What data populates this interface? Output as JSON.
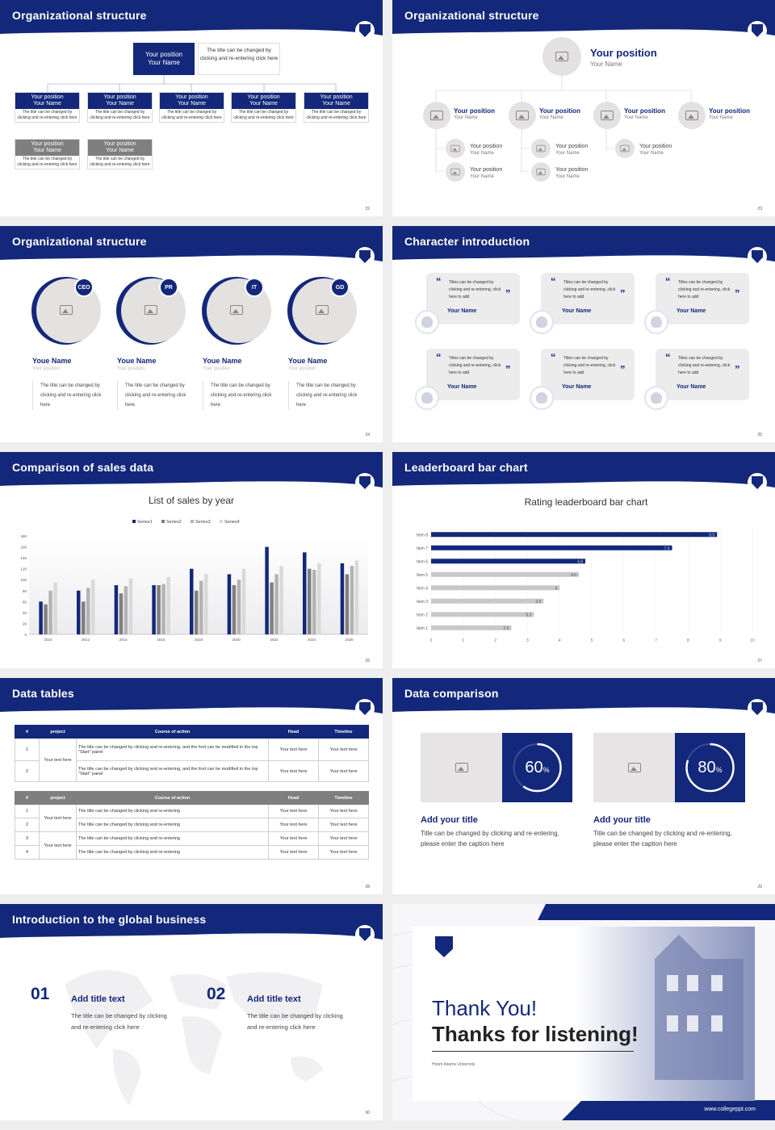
{
  "s22": {
    "title": "Organizational structure",
    "top": {
      "pos": "Your position",
      "name": "Your Name",
      "note": "The title can be changed by clicking and re-entering click here"
    },
    "row1": [
      {
        "pos": "Your position",
        "name": "Your Name",
        "desc": "The title can be changed by clicking and re-entering click here"
      },
      {
        "pos": "Your position",
        "name": "Your Name",
        "desc": "The title can be changed by clicking and re-entering click here"
      },
      {
        "pos": "Your position",
        "name": "Your Name",
        "desc": "The title can be changed by clicking and re-entering click here"
      },
      {
        "pos": "Your position",
        "name": "Your Name",
        "desc": "The title can be changed by clicking and re-entering click here"
      },
      {
        "pos": "Your position",
        "name": "Your Name",
        "desc": "The title can be changed by clicking and re-entering click here"
      }
    ],
    "row2": [
      {
        "pos": "Your position",
        "name": "Your Name",
        "desc": "The title can be changed by clicking and re-entering click here"
      },
      {
        "pos": "Your position",
        "name": "Your Name",
        "desc": "The title can be changed by clicking and re-entering click here"
      }
    ],
    "page": "22"
  },
  "s23": {
    "title": "Organizational structure",
    "top": {
      "pos": "Your position",
      "name": "Your Name"
    },
    "mid": [
      {
        "pos": "Your position",
        "name": "Your Name"
      },
      {
        "pos": "Your position",
        "name": "Your Name"
      },
      {
        "pos": "Your position",
        "name": "Your Name"
      },
      {
        "pos": "Your position",
        "name": "Your Name"
      }
    ],
    "sub": [
      {
        "pos": "Your position",
        "name": "Your Name"
      },
      {
        "pos": "Your position",
        "name": "Your Name"
      },
      {
        "pos": "Your position",
        "name": "Your Name"
      },
      {
        "pos": "Your position",
        "name": "Your Name"
      },
      {
        "pos": "Your position",
        "name": "Your Name"
      }
    ],
    "page": "23"
  },
  "s24": {
    "title": "Organizational structure",
    "people": [
      {
        "tag": "CEO",
        "name": "Youe Name",
        "pos": "Your position",
        "desc": "The title can be changed by clicking and re-entering click here"
      },
      {
        "tag": "PR",
        "name": "Youe Name",
        "pos": "Your position",
        "desc": "The title can be changed by clicking and re-entering click here"
      },
      {
        "tag": "IT",
        "name": "Youe Name",
        "pos": "Your position",
        "desc": "The title can be changed by clicking and re-entering click here"
      },
      {
        "tag": "GD",
        "name": "Youe Name",
        "pos": "Your position",
        "desc": "The title can be changed by clicking and re-entering click here"
      }
    ],
    "page": "24"
  },
  "s25": {
    "title": "Character introduction",
    "cards": [
      {
        "text": "Titles can be changed by clicking and re-entering, click here to add",
        "name": "Your Name"
      },
      {
        "text": "Titles can be changed by clicking and re-entering, click here to add",
        "name": "Your Name"
      },
      {
        "text": "Titles can be changed by clicking and re-entering, click here to add",
        "name": "Your Name"
      },
      {
        "text": "Titles can be changed by clicking and re-entering, click here to add",
        "name": "Your Name"
      },
      {
        "text": "Titles can be changed by clicking and re-entering, click here to add",
        "name": "Your Name"
      },
      {
        "text": "Titles can be changed by clicking and re-entering, click here to add",
        "name": "Your Name"
      }
    ],
    "page": "25"
  },
  "s26": {
    "title": "Comparison of sales data",
    "page": "26"
  },
  "s27": {
    "title": "Leaderboard bar chart",
    "page": "27"
  },
  "chart_data": [
    {
      "type": "bar",
      "title": "List of sales by year",
      "categories": [
        "2010",
        "2012",
        "2014",
        "2016",
        "2018",
        "2020",
        "2022",
        "2024",
        "2026"
      ],
      "series": [
        {
          "name": "Series1",
          "color": "#13287a",
          "values": [
            60,
            80,
            90,
            90,
            120,
            110,
            160,
            150,
            130
          ]
        },
        {
          "name": "Series2",
          "color": "#808080",
          "values": [
            55,
            60,
            75,
            90,
            80,
            90,
            95,
            120,
            110
          ]
        },
        {
          "name": "Series3",
          "color": "#b3b3b3",
          "values": [
            80,
            85,
            88,
            92,
            98,
            100,
            110,
            118,
            125
          ]
        },
        {
          "name": "Series4",
          "color": "#d9d9d9",
          "values": [
            95,
            100,
            102,
            105,
            110,
            120,
            125,
            130,
            135
          ]
        }
      ],
      "yticks": [
        0,
        20,
        40,
        60,
        80,
        100,
        120,
        140,
        160,
        180
      ],
      "ylim": [
        0,
        180
      ],
      "legend": "top",
      "grid": false
    },
    {
      "type": "bar",
      "orientation": "horizontal",
      "title": "Rating leaderboard bar chart",
      "categories": [
        "Item 1",
        "Item 2",
        "Item 3",
        "Item 4",
        "Item 5",
        "Item 6",
        "Item 7",
        "Item 8"
      ],
      "values": [
        2.5,
        3.2,
        3.5,
        4,
        4.6,
        4.8,
        7.5,
        8.9
      ],
      "value_labels": [
        "2.5",
        "3.2",
        "3.5",
        "4",
        "4.6",
        "4.8",
        "7.5",
        "8.9"
      ],
      "xticks": [
        0,
        1,
        2,
        3,
        4,
        5,
        6,
        7,
        8,
        9,
        10
      ],
      "xlim": [
        0,
        10
      ],
      "colors": {
        "top": "#13287a",
        "rest": "#c8c8c8"
      }
    }
  ],
  "s28": {
    "title": "Data tables",
    "t1": {
      "headers": [
        "#",
        "project",
        "Course of action",
        "Head",
        "Timeline"
      ],
      "rows": [
        {
          "n": "1",
          "action": "The title can be changed by clicking and re-entering, and the font can be modified in the top \"Start\" panel",
          "head": "Your text here",
          "time": "Your text here"
        },
        {
          "n": "2",
          "action": "The title can be changed by clicking and re-entering, and the font can be modified in the top \"Start\" panel",
          "head": "Your text here",
          "time": "Your text here"
        }
      ],
      "project": "Your text here"
    },
    "t2": {
      "headers": [
        "#",
        "project",
        "Course of action",
        "Head",
        "Timeline"
      ],
      "rows": [
        {
          "n": "1",
          "action": "The title can be changed by clicking and re-entering",
          "head": "Your text here",
          "time": "Your text here"
        },
        {
          "n": "2",
          "action": "The title can be changed by clicking and re-entering",
          "head": "Your text here",
          "time": "Your text here"
        },
        {
          "n": "3",
          "action": "The title can be changed by clicking and re-entering",
          "head": "Your text here",
          "time": "Your text here"
        },
        {
          "n": "4",
          "action": "The title can be changed by clicking and re-entering",
          "head": "Your text here",
          "time": "Your text here"
        }
      ],
      "project_a": "Your text here",
      "project_b": "Your text here"
    },
    "page": "28"
  },
  "s29": {
    "title": "Data comparison",
    "items": [
      {
        "pct": 60,
        "label": "60",
        "unit": "%",
        "heading": "Add your title",
        "desc": "Title can be changed by clicking and re-entering, please enter the caption here"
      },
      {
        "pct": 80,
        "label": "80",
        "unit": "%",
        "heading": "Add your title",
        "desc": "Title can be changed by clicking and re-entering, please enter the caption here"
      }
    ],
    "page": "29"
  },
  "s30": {
    "title": "Introduction to the global business",
    "items": [
      {
        "num": "01",
        "heading": "Add title text",
        "desc": "The title can be changed by clicking and re-entering click here"
      },
      {
        "num": "02",
        "heading": "Add title text",
        "desc": "The title can be changed by clicking and re-entering click here"
      }
    ],
    "page": "30"
  },
  "s31": {
    "line1": "Thank You!",
    "line2": "Thanks for listening!",
    "uni": "Hiram Adams University",
    "url": "www.collegeppt.com"
  }
}
